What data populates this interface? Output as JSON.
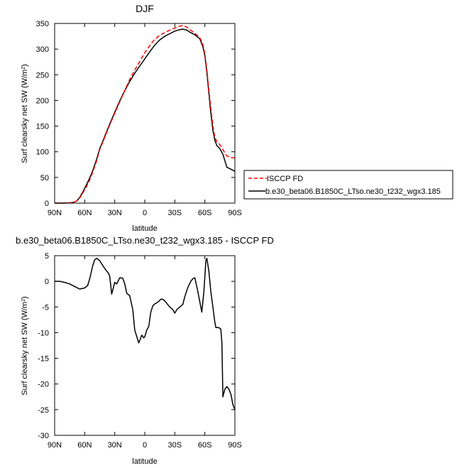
{
  "chart_data": [
    {
      "type": "line",
      "title": "DJF",
      "xlabel": "latitude",
      "ylabel": "Surf clearsky net SW (W/m",
      "ylabel_sup": "2",
      "ylabel_end": ")",
      "xlim": [
        90,
        -90
      ],
      "ylim": [
        0,
        350
      ],
      "xticks": [
        {
          "value": 90,
          "label": "90N"
        },
        {
          "value": 60,
          "label": "60N"
        },
        {
          "value": 30,
          "label": "30N"
        },
        {
          "value": 0,
          "label": "0"
        },
        {
          "value": -30,
          "label": "30S"
        },
        {
          "value": -60,
          "label": "60S"
        },
        {
          "value": -90,
          "label": "90S"
        }
      ],
      "yticks": [
        0,
        50,
        100,
        150,
        200,
        250,
        300,
        350
      ],
      "legend_position": "right",
      "series": [
        {
          "name": "ISCCP FD",
          "color": "#ff0000",
          "dash": true,
          "x": [
            90,
            80,
            72,
            68,
            65,
            62,
            58,
            55,
            52,
            48,
            45,
            40,
            35,
            30,
            25,
            20,
            15,
            10,
            5,
            0,
            -5,
            -10,
            -15,
            -20,
            -25,
            -30,
            -35,
            -38,
            -42,
            -45,
            -50,
            -55,
            -58,
            -60,
            -62,
            -64,
            -66,
            -68,
            -70,
            -72,
            -75,
            -78,
            -82,
            -86,
            -90
          ],
          "y": [
            0,
            0,
            1,
            4,
            10,
            19,
            33,
            45,
            60,
            83,
            104,
            128,
            152,
            175,
            197,
            219,
            241,
            259,
            276,
            293,
            307,
            319,
            327,
            332,
            337,
            341,
            345,
            346,
            343,
            338,
            331,
            322,
            310,
            290,
            260,
            220,
            185,
            150,
            128,
            120,
            114,
            104,
            92,
            89,
            88
          ]
        },
        {
          "name": "b.e30_beta06.B1850C_LTso.ne30_t232_wgx3.185",
          "color": "#000000",
          "dash": false,
          "x": [
            90,
            80,
            72,
            68,
            65,
            62,
            58,
            55,
            52,
            48,
            45,
            40,
            35,
            30,
            25,
            20,
            15,
            10,
            5,
            0,
            -5,
            -10,
            -15,
            -20,
            -25,
            -30,
            -35,
            -38,
            -42,
            -45,
            -50,
            -55,
            -58,
            -60,
            -62,
            -64,
            -66,
            -68,
            -70,
            -72,
            -75,
            -78,
            -82,
            -86,
            -90
          ],
          "y": [
            0,
            0,
            1,
            4,
            11,
            21,
            37,
            49,
            63,
            86,
            106,
            130,
            154,
            177,
            199,
            219,
            237,
            253,
            267,
            281,
            295,
            308,
            318,
            325,
            330,
            335,
            338,
            339,
            337,
            333,
            328,
            320,
            305,
            287,
            255,
            215,
            175,
            142,
            122,
            112,
            106,
            95,
            70,
            66,
            62
          ]
        }
      ]
    },
    {
      "type": "line",
      "title": "b.e30_beta06.B1850C_LTso.ne30_t232_wgx3.185 - ISCCP FD",
      "xlabel": "latitude",
      "ylabel": "Surf clearsky net SW (W/m",
      "ylabel_sup": "2",
      "ylabel_end": ")",
      "xlim": [
        90,
        -90
      ],
      "ylim": [
        -30,
        5
      ],
      "xticks": [
        {
          "value": 90,
          "label": "90N"
        },
        {
          "value": 60,
          "label": "60N"
        },
        {
          "value": 30,
          "label": "30N"
        },
        {
          "value": 0,
          "label": "0"
        },
        {
          "value": -30,
          "label": "30S"
        },
        {
          "value": -60,
          "label": "60S"
        },
        {
          "value": -90,
          "label": "90S"
        }
      ],
      "yticks": [
        -30,
        -25,
        -20,
        -15,
        -10,
        -5,
        0,
        5
      ],
      "series": [
        {
          "color": "#000000",
          "dash": false,
          "x": [
            90,
            85,
            80,
            75,
            70,
            65,
            60,
            57,
            55,
            52,
            50,
            48,
            45,
            40,
            36,
            35,
            33,
            30,
            28,
            25,
            22,
            20,
            18,
            15,
            12,
            10,
            6,
            3,
            1,
            0,
            -2,
            -4,
            -6,
            -8,
            -10,
            -12,
            -14,
            -16,
            -18,
            -20,
            -22,
            -25,
            -28,
            -30,
            -32,
            -35,
            -38,
            -40,
            -43,
            -46,
            -48,
            -50,
            -53,
            -55,
            -57,
            -59,
            -61,
            -62,
            -64,
            -65,
            -66,
            -68,
            -70,
            -71,
            -72,
            -74,
            -75,
            -76,
            -77,
            -78,
            -80,
            -82,
            -84,
            -86,
            -88,
            -90
          ],
          "y": [
            0,
            0,
            -0.2,
            -0.5,
            -1,
            -1.5,
            -1.3,
            -0.8,
            0.5,
            3,
            4.2,
            4.5,
            4,
            2.5,
            1.5,
            1,
            -2.5,
            -0.2,
            -0.5,
            0.7,
            0.6,
            -0.5,
            -2.3,
            -2.8,
            -5.5,
            -9.5,
            -12,
            -10.5,
            -11,
            -10.8,
            -9.5,
            -8.8,
            -6,
            -4.8,
            -4.4,
            -4.2,
            -3.9,
            -3.5,
            -3.5,
            -3.8,
            -4.3,
            -5,
            -5.5,
            -6.2,
            -5.5,
            -5,
            -4.5,
            -3,
            -1.2,
            0,
            0.5,
            0.7,
            -2,
            -4,
            -6,
            -2,
            4,
            4.5,
            2,
            0,
            -2,
            -5,
            -8,
            -9,
            -9,
            -9,
            -9.2,
            -9.3,
            -12,
            -22.5,
            -21,
            -20.5,
            -21,
            -22,
            -24,
            -25
          ]
        }
      ]
    }
  ]
}
